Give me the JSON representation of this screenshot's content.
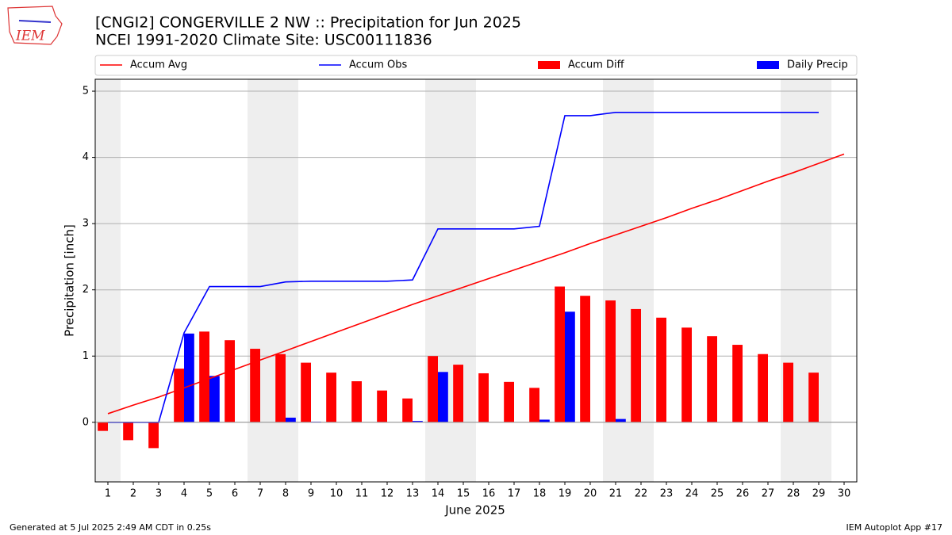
{
  "logo": "IEM",
  "footer": {
    "left": "Generated at 5 Jul 2025 2:49 AM CDT in 0.25s",
    "right": "IEM Autoplot App #17"
  },
  "chart_data": {
    "type": "combo",
    "title": "[CNGI2] CONGERVILLE 2 NW :: Precipitation for Jun 2025",
    "subtitle": "NCEI 1991-2020 Climate Site: USC00111836",
    "x_label": "June 2025",
    "y_label": "Precipitation [inch]",
    "x": [
      1,
      2,
      3,
      4,
      5,
      6,
      7,
      8,
      9,
      10,
      11,
      12,
      13,
      14,
      15,
      16,
      17,
      18,
      19,
      20,
      21,
      22,
      23,
      24,
      25,
      26,
      27,
      28,
      29,
      30
    ],
    "xlim": [
      0.5,
      30.5
    ],
    "xticks": [
      1,
      2,
      3,
      4,
      5,
      6,
      7,
      8,
      9,
      10,
      11,
      12,
      13,
      14,
      15,
      16,
      17,
      18,
      19,
      20,
      21,
      22,
      23,
      24,
      25,
      26,
      27,
      28,
      29,
      30
    ],
    "ylim": [
      -0.9,
      5.18
    ],
    "yticks": [
      0,
      1,
      2,
      3,
      4,
      5
    ],
    "grid": true,
    "shaded_days": [
      1,
      7,
      8,
      14,
      15,
      21,
      22,
      28,
      29
    ],
    "shade_color": "#eeeeee",
    "series": [
      {
        "name": "Accum Avg",
        "color": "#ff0000",
        "kind": "line",
        "values": [
          0.13,
          0.26,
          0.38,
          0.52,
          0.66,
          0.8,
          0.94,
          1.08,
          1.22,
          1.36,
          1.5,
          1.64,
          1.78,
          1.91,
          2.04,
          2.17,
          2.3,
          2.43,
          2.56,
          2.7,
          2.83,
          2.96,
          3.09,
          3.23,
          3.36,
          3.5,
          3.64,
          3.77,
          3.91,
          4.05
        ]
      },
      {
        "name": "Accum Obs",
        "color": "#0000ff",
        "kind": "line",
        "values": [
          0,
          0,
          0,
          1.35,
          2.05,
          2.05,
          2.05,
          2.12,
          2.13,
          2.13,
          2.13,
          2.13,
          2.15,
          2.92,
          2.92,
          2.92,
          2.92,
          2.96,
          4.63,
          4.63,
          4.68,
          4.68,
          4.68,
          4.68,
          4.68,
          4.68,
          4.68,
          4.68,
          4.68,
          null
        ]
      },
      {
        "name": "Accum Diff",
        "color": "#ff0000",
        "kind": "bar",
        "offset": -1,
        "values": [
          -0.13,
          -0.27,
          -0.39,
          0.81,
          1.37,
          1.24,
          1.11,
          1.03,
          0.9,
          0.75,
          0.62,
          0.48,
          0.36,
          1.0,
          0.87,
          0.74,
          0.61,
          0.52,
          2.05,
          1.91,
          1.84,
          1.71,
          1.58,
          1.43,
          1.3,
          1.17,
          1.03,
          0.9,
          0.75,
          null
        ]
      },
      {
        "name": "Daily Precip",
        "color": "#0000ff",
        "kind": "bar",
        "offset": 1,
        "values": [
          0,
          0,
          0,
          1.34,
          0.7,
          0,
          0,
          0.07,
          0.01,
          0,
          0,
          0,
          0.02,
          0.76,
          0,
          0,
          0,
          0.04,
          1.67,
          0,
          0.05,
          0,
          0,
          0,
          0,
          0,
          0,
          0,
          0,
          null
        ]
      }
    ]
  }
}
